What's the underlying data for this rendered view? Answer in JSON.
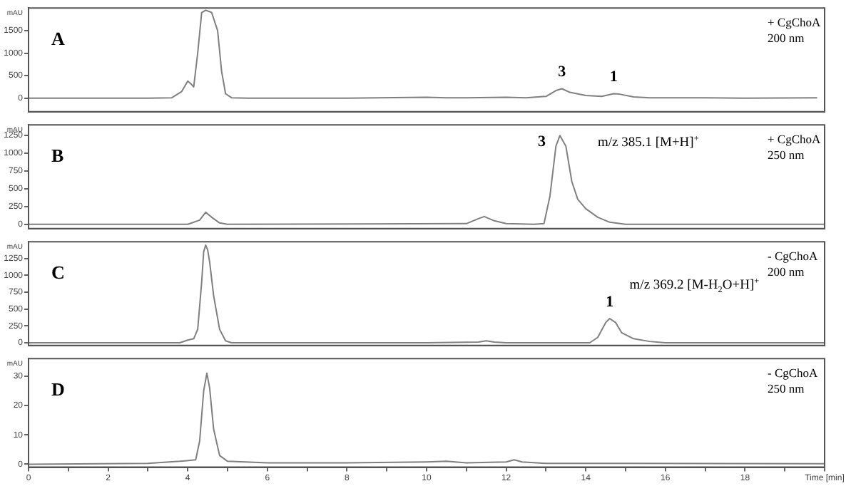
{
  "chart_data": [
    {
      "type": "line",
      "title": "A",
      "ylabel": "mAU",
      "xlim": [
        0,
        20
      ],
      "ylim": [
        -300,
        2000
      ],
      "yticks": [
        0,
        500,
        1000,
        1500
      ],
      "tick_labels": "y",
      "grid": false,
      "marker": "none",
      "x": [
        0,
        3.0,
        3.6,
        3.85,
        4.0,
        4.1,
        4.15,
        4.25,
        4.35,
        4.45,
        4.6,
        4.75,
        4.85,
        4.95,
        5.1,
        5.5,
        8,
        10.0,
        10.5,
        11,
        12.0,
        12.5,
        13.0,
        13.25,
        13.4,
        13.6,
        14.0,
        14.4,
        14.7,
        14.85,
        15.2,
        15.6,
        17,
        18,
        19.8
      ],
      "series": [
        {
          "color": "#808080",
          "values": [
            0,
            0,
            10,
            150,
            380,
            300,
            250,
            1000,
            1900,
            1950,
            1900,
            1500,
            600,
            100,
            10,
            0,
            0,
            20,
            10,
            10,
            20,
            10,
            40,
            170,
            210,
            130,
            60,
            40,
            100,
            90,
            30,
            10,
            10,
            0,
            10
          ]
        }
      ],
      "annotations": [
        "+ CgChoA",
        "200 nm",
        {
          "text": "3",
          "x": 13.4,
          "y": 210
        },
        {
          "text": "1",
          "x": 14.7,
          "y": 100
        }
      ]
    },
    {
      "type": "line",
      "title": "B",
      "ylabel": "mAU",
      "xlim": [
        0,
        20
      ],
      "ylim": [
        -60,
        1400
      ],
      "yticks": [
        0,
        250,
        500,
        750,
        1000,
        1250
      ],
      "tick_labels": "y",
      "grid": false,
      "marker": "none",
      "x": [
        0,
        4.0,
        4.3,
        4.45,
        4.6,
        4.8,
        5.0,
        11.0,
        11.3,
        11.45,
        11.7,
        12.0,
        12.7,
        12.95,
        13.1,
        13.25,
        13.35,
        13.5,
        13.65,
        13.8,
        14.0,
        14.3,
        14.6,
        15.0,
        20
      ],
      "series": [
        {
          "color": "#808080",
          "values": [
            0,
            0,
            60,
            170,
            100,
            20,
            0,
            10,
            80,
            110,
            50,
            10,
            0,
            10,
            400,
            1100,
            1250,
            1100,
            600,
            350,
            220,
            100,
            30,
            0,
            0
          ]
        }
      ],
      "annotations": [
        "+ CgChoA",
        "250 nm",
        {
          "text": "3",
          "x": 13.35,
          "y": 1250
        },
        "m/z 385.1 [M+H]$^{+}$"
      ]
    },
    {
      "type": "line",
      "title": "C",
      "ylabel": "mAU",
      "xlim": [
        0,
        20
      ],
      "ylim": [
        -40,
        1500
      ],
      "yticks": [
        0,
        250,
        500,
        750,
        1000,
        1250
      ],
      "tick_labels": "y",
      "grid": false,
      "marker": "none",
      "x": [
        0,
        3.8,
        4.0,
        4.15,
        4.25,
        4.35,
        4.4,
        4.45,
        4.5,
        4.55,
        4.65,
        4.8,
        4.95,
        5.1,
        10,
        11.3,
        11.5,
        11.7,
        12,
        14.1,
        14.3,
        14.5,
        14.6,
        14.75,
        14.9,
        15.2,
        15.6,
        16.0,
        20
      ],
      "series": [
        {
          "color": "#808080",
          "values": [
            0,
            0,
            40,
            60,
            200,
            900,
            1350,
            1450,
            1380,
            1200,
            700,
            200,
            30,
            0,
            0,
            10,
            30,
            10,
            0,
            0,
            80,
            300,
            360,
            300,
            150,
            60,
            20,
            0,
            0
          ]
        }
      ],
      "annotations": [
        "- CgChoA",
        "200 nm",
        {
          "text": "1",
          "x": 14.6,
          "y": 360
        },
        "m/z 369.2 [M-H$_{2}$O+H]$^{+}$"
      ]
    },
    {
      "type": "line",
      "title": "D",
      "ylabel": "mAU",
      "xlim": [
        0,
        20
      ],
      "ylim": [
        -1,
        36
      ],
      "yticks": [
        0,
        10,
        20,
        30
      ],
      "grid": false,
      "marker": "none",
      "xticks": [
        0,
        {
          "value": 1,
          "label": null
        },
        2,
        {
          "value": 3,
          "label": null
        },
        4,
        {
          "value": 5,
          "label": null
        },
        6,
        {
          "value": 7,
          "label": null
        },
        8,
        {
          "value": 9,
          "label": null
        },
        10,
        {
          "value": 11,
          "label": null
        },
        12,
        {
          "value": 13,
          "label": null
        },
        14,
        {
          "value": 15,
          "label": null
        },
        16,
        {
          "value": 17,
          "label": null
        },
        18,
        {
          "value": 19,
          "label": null
        },
        {
          "value": 20,
          "label": "Time [min]"
        }
      ],
      "x": [
        0,
        3,
        3.8,
        4.2,
        4.3,
        4.4,
        4.48,
        4.55,
        4.65,
        4.8,
        5.0,
        6,
        8,
        10,
        10.5,
        11,
        12.0,
        12.2,
        12.4,
        13,
        15,
        20
      ],
      "series": [
        {
          "color": "#808080",
          "values": [
            0,
            0.3,
            1,
            1.5,
            8,
            25,
            31,
            26,
            12,
            3,
            1,
            0.5,
            0.5,
            0.8,
            1.0,
            0.5,
            0.8,
            1.5,
            0.8,
            0.3,
            0.3,
            0.2
          ]
        }
      ],
      "annotations": [
        "- CgChoA",
        "250 nm"
      ]
    }
  ]
}
